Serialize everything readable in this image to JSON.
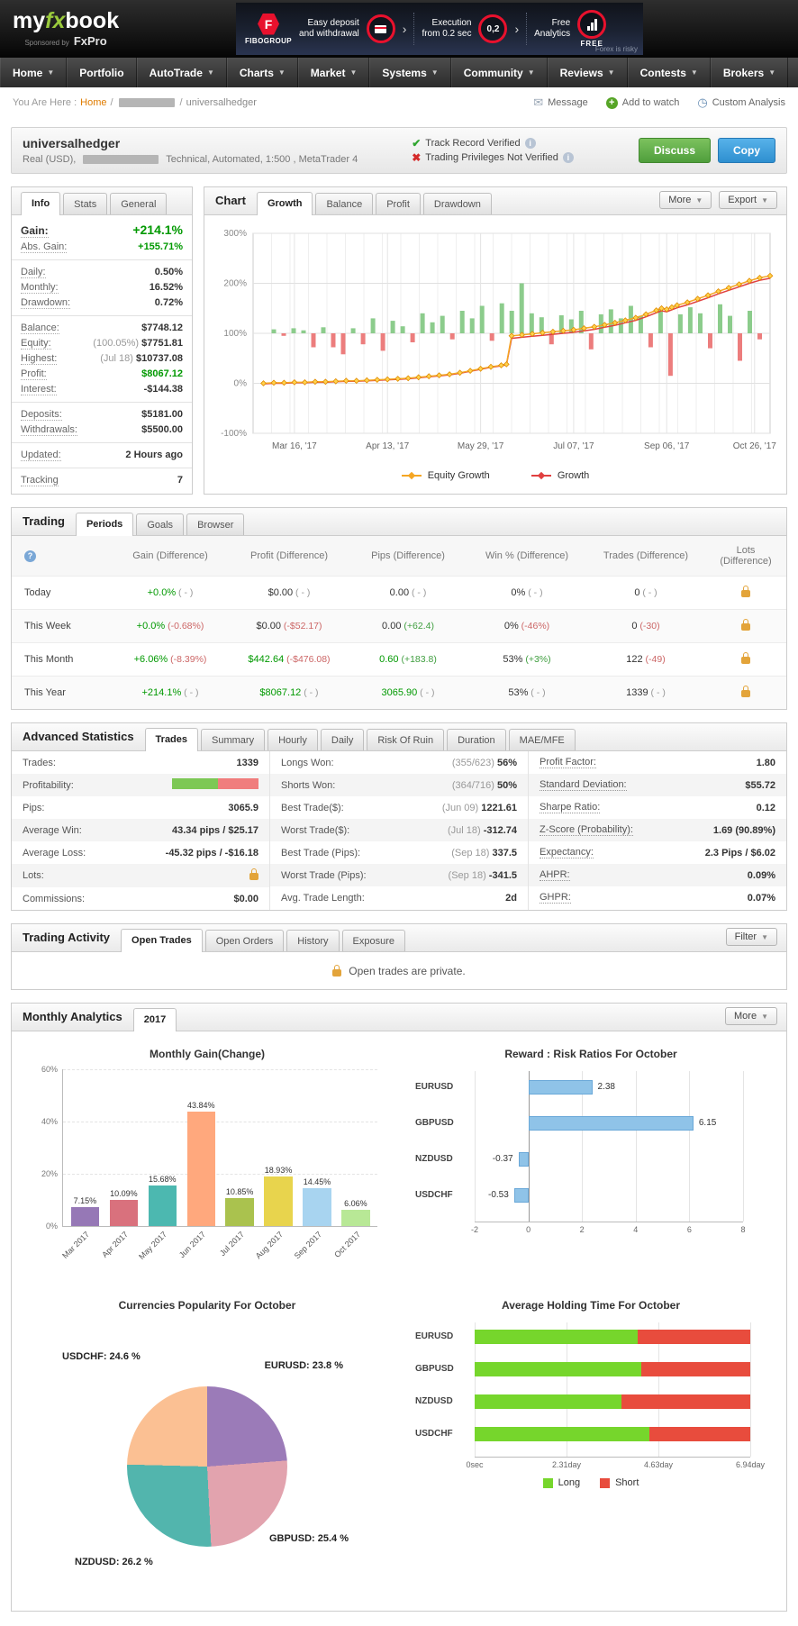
{
  "colors": {
    "accent_green": "#9aca3c",
    "positive": "#009900",
    "negative": "#cc2222",
    "link_orange": "#e07c00",
    "lock_gold": "#e3a43a"
  },
  "brand": {
    "logo_my": "my",
    "logo_fx": "fx",
    "logo_book": "book",
    "sponsored_by": "Sponsored by",
    "sponsor": "FxPro"
  },
  "ad": {
    "brand": "FIBOGROUP",
    "f1a": "Easy deposit",
    "f1b": "and withdrawal",
    "f2a": "Execution",
    "f2b": "from 0.2 sec",
    "f3a": "Free",
    "f3b": "Analytics",
    "badge": "0,2",
    "free": "FREE",
    "disclaimer": "Forex is risky"
  },
  "nav": [
    {
      "label": "Home",
      "arrow": true
    },
    {
      "label": "Portfolio",
      "arrow": false
    },
    {
      "label": "AutoTrade",
      "arrow": true
    },
    {
      "label": "Charts",
      "arrow": true
    },
    {
      "label": "Market",
      "arrow": true
    },
    {
      "label": "Systems",
      "arrow": true
    },
    {
      "label": "Community",
      "arrow": true
    },
    {
      "label": "Reviews",
      "arrow": true
    },
    {
      "label": "Contests",
      "arrow": true
    },
    {
      "label": "Brokers",
      "arrow": true
    }
  ],
  "breadcrumb": {
    "prefix": "You Are Here :",
    "home": "Home",
    "sep": "/",
    "current": "universalhedger",
    "actions": [
      {
        "label": "Message",
        "icon": "envelope-icon"
      },
      {
        "label": "Add to watch",
        "icon": "add-icon"
      },
      {
        "label": "Custom Analysis",
        "icon": "analysis-icon"
      }
    ]
  },
  "system": {
    "name": "universalhedger",
    "meta_prefix": "Real (USD),",
    "meta_suffix": "Technical, Automated, 1:500 , MetaTrader 4",
    "track_record": "Track Record Verified",
    "privileges": "Trading Privileges Not Verified",
    "discuss_label": "Discuss",
    "copy_label": "Copy"
  },
  "info_panel": {
    "tabs": [
      "Info",
      "Stats",
      "General"
    ],
    "active_tab": "Info",
    "groups": [
      [
        {
          "label": "Gain:",
          "value": "+214.1%",
          "color": "green",
          "big": true
        },
        {
          "label": "Abs. Gain:",
          "value": "+155.71%",
          "color": "green"
        }
      ],
      [
        {
          "label": "Daily:",
          "value": "0.50%"
        },
        {
          "label": "Monthly:",
          "value": "16.52%"
        },
        {
          "label": "Drawdown:",
          "value": "0.72%"
        }
      ],
      [
        {
          "label": "Balance:",
          "value": "$7748.12"
        },
        {
          "label": "Equity:",
          "prefix": "(100.05%)",
          "value": "$7751.81"
        },
        {
          "label": "Highest:",
          "prefix": "(Jul 18)",
          "value": "$10737.08"
        },
        {
          "label": "Profit:",
          "value": "$8067.12",
          "color": "green"
        },
        {
          "label": "Interest:",
          "value": "-$144.38"
        }
      ],
      [
        {
          "label": "Deposits:",
          "value": "$5181.00"
        },
        {
          "label": "Withdrawals:",
          "value": "$5500.00"
        }
      ],
      [
        {
          "label": "Updated:",
          "value": "2 Hours ago"
        }
      ],
      [
        {
          "label": "Tracking",
          "value": "7"
        }
      ]
    ]
  },
  "chart_panel": {
    "title": "Chart",
    "tabs": [
      "Growth",
      "Balance",
      "Profit",
      "Drawdown"
    ],
    "active_tab": "Growth",
    "more_label": "More",
    "export_label": "Export",
    "legend": [
      {
        "label": "Equity Growth",
        "color": "#f5a623"
      },
      {
        "label": "Growth",
        "color": "#e14040"
      }
    ]
  },
  "trading_panel": {
    "title": "Trading",
    "tabs": [
      "Periods",
      "Goals",
      "Browser"
    ],
    "active_tab": "Periods",
    "columns": [
      "Gain (Difference)",
      "Profit (Difference)",
      "Pips (Difference)",
      "Win % (Difference)",
      "Trades (Difference)",
      "Lots (Difference)"
    ],
    "rows": [
      {
        "period": "Today",
        "cells": [
          [
            "+0.0%",
            "pos",
            "( - )",
            "mut"
          ],
          [
            "$0.00",
            "",
            "( - )",
            "mut"
          ],
          [
            "0.00",
            "",
            "( - )",
            "mut"
          ],
          [
            "0%",
            "",
            "( - )",
            "mut"
          ],
          [
            "0",
            "",
            "( - )",
            "mut"
          ]
        ],
        "lots_lock": true
      },
      {
        "period": "This Week",
        "cells": [
          [
            "+0.0%",
            "pos",
            "(-0.68%)",
            "neg"
          ],
          [
            "$0.00",
            "",
            "(-$52.17)",
            "neg"
          ],
          [
            "0.00",
            "",
            "(+62.4)",
            "pos"
          ],
          [
            "0%",
            "",
            "(-46%)",
            "neg"
          ],
          [
            "0",
            "",
            "(-30)",
            "neg"
          ]
        ],
        "lots_lock": true
      },
      {
        "period": "This Month",
        "cells": [
          [
            "+6.06%",
            "pos",
            "(-8.39%)",
            "neg"
          ],
          [
            "$442.64",
            "pos",
            "(-$476.08)",
            "neg"
          ],
          [
            "0.60",
            "pos",
            "(+183.8)",
            "pos"
          ],
          [
            "53%",
            "",
            "(+3%)",
            "pos"
          ],
          [
            "122",
            "",
            "(-49)",
            "neg"
          ]
        ],
        "lots_lock": true
      },
      {
        "period": "This Year",
        "cells": [
          [
            "+214.1%",
            "pos",
            "( - )",
            "mut"
          ],
          [
            "$8067.12",
            "pos",
            "( - )",
            "mut"
          ],
          [
            "3065.90",
            "pos",
            "( - )",
            "mut"
          ],
          [
            "53%",
            "",
            "( - )",
            "mut"
          ],
          [
            "1339",
            "",
            "( - )",
            "mut"
          ]
        ],
        "lots_lock": true
      }
    ]
  },
  "advanced_panel": {
    "title": "Advanced Statistics",
    "tabs": [
      "Trades",
      "Summary",
      "Hourly",
      "Daily",
      "Risk Of Ruin",
      "Duration",
      "MAE/MFE"
    ],
    "active_tab": "Trades",
    "profitability_green_pct": 53,
    "columns": [
      [
        {
          "label": "Trades:",
          "value": "1339"
        },
        {
          "label": "Profitability:",
          "bar": true
        },
        {
          "label": "Pips:",
          "value": "3065.9"
        },
        {
          "label": "Average Win:",
          "value": "43.34 pips / $25.17"
        },
        {
          "label": "Average Loss:",
          "value": "-45.32 pips / -$16.18"
        },
        {
          "label": "Lots:",
          "lock": true
        },
        {
          "label": "Commissions:",
          "value": "$0.00"
        }
      ],
      [
        {
          "label": "Longs Won:",
          "prefix": "(355/623)",
          "value": "56%"
        },
        {
          "label": "Shorts Won:",
          "prefix": "(364/716)",
          "value": "50%"
        },
        {
          "label": "Best Trade($):",
          "prefix": "(Jun 09)",
          "value": "1221.61"
        },
        {
          "label": "Worst Trade($):",
          "prefix": "(Jul 18)",
          "value": "-312.74"
        },
        {
          "label": "Best Trade (Pips):",
          "prefix": "(Sep 18)",
          "value": "337.5"
        },
        {
          "label": "Worst Trade (Pips):",
          "prefix": "(Sep 18)",
          "value": "-341.5"
        },
        {
          "label": "Avg. Trade Length:",
          "value": "2d"
        }
      ],
      [
        {
          "label": "Profit Factor:",
          "value": "1.80",
          "dotted": true
        },
        {
          "label": "Standard Deviation:",
          "value": "$55.72",
          "dotted": true
        },
        {
          "label": "Sharpe Ratio:",
          "value": "0.12",
          "dotted": true
        },
        {
          "label": "Z-Score (Probability):",
          "value": "1.69 (90.89%)",
          "dotted": true
        },
        {
          "label": "Expectancy:",
          "value": "2.3 Pips / $6.02",
          "dotted": true
        },
        {
          "label": "AHPR:",
          "value": "0.09%",
          "dotted": true
        },
        {
          "label": "GHPR:",
          "value": "0.07%",
          "dotted": true
        }
      ]
    ]
  },
  "activity_panel": {
    "title": "Trading Activity",
    "tabs": [
      "Open Trades",
      "Open Orders",
      "History",
      "Exposure"
    ],
    "active_tab": "Open Trades",
    "filter_label": "Filter",
    "message": "Open trades are private."
  },
  "monthly_panel": {
    "title": "Monthly Analytics",
    "tab": "2017",
    "more_label": "More"
  },
  "chart_data": [
    {
      "type": "line+bar",
      "title": "Growth",
      "ylim": [
        -100,
        300
      ],
      "ytick_values": [
        300,
        200,
        100,
        0,
        -100
      ],
      "yticks": [
        "300%",
        "200%",
        "100%",
        "0%",
        "-100%"
      ],
      "xticks": [
        "Mar 16, '17",
        "Apr 13, '17",
        "May 29, '17",
        "Jul 07, '17",
        "Sep 06, '17",
        "Oct 26, '17"
      ],
      "xtick_pos": [
        0.08,
        0.26,
        0.44,
        0.62,
        0.8,
        0.97
      ],
      "series": [
        {
          "name": "Equity Growth",
          "color": "#f5a623",
          "points": [
            [
              2,
              0
            ],
            [
              4,
              1
            ],
            [
              6,
              1
            ],
            [
              8,
              2
            ],
            [
              10,
              2
            ],
            [
              12,
              3
            ],
            [
              14,
              3
            ],
            [
              16,
              4
            ],
            [
              18,
              5
            ],
            [
              20,
              5
            ],
            [
              22,
              6
            ],
            [
              24,
              7
            ],
            [
              26,
              8
            ],
            [
              28,
              9
            ],
            [
              30,
              10
            ],
            [
              32,
              12
            ],
            [
              34,
              14
            ],
            [
              36,
              16
            ],
            [
              38,
              18
            ],
            [
              40,
              21
            ],
            [
              42,
              25
            ],
            [
              44,
              29
            ],
            [
              46,
              33
            ],
            [
              48,
              36
            ],
            [
              49,
              38
            ],
            [
              50,
              95
            ],
            [
              52,
              97
            ],
            [
              54,
              99
            ],
            [
              56,
              101
            ],
            [
              58,
              103
            ],
            [
              60,
              105
            ],
            [
              62,
              107
            ],
            [
              64,
              110
            ],
            [
              66,
              113
            ],
            [
              68,
              117
            ],
            [
              70,
              121
            ],
            [
              72,
              126
            ],
            [
              74,
              131
            ],
            [
              76,
              138
            ],
            [
              78,
              146
            ],
            [
              79,
              150
            ],
            [
              80,
              148
            ],
            [
              81,
              152
            ],
            [
              82,
              156
            ],
            [
              84,
              162
            ],
            [
              86,
              169
            ],
            [
              88,
              176
            ],
            [
              90,
              184
            ],
            [
              92,
              191
            ],
            [
              94,
              198
            ],
            [
              96,
              205
            ],
            [
              98,
              211
            ],
            [
              100,
              215
            ]
          ]
        },
        {
          "name": "Growth",
          "color": "#e14040"
        }
      ],
      "bars": {
        "baseline": 100,
        "positive_color": "#8ccc8c",
        "negative_color": "#ec7d7d",
        "values": [
          8,
          -5,
          10,
          6,
          -28,
          12,
          -28,
          -42,
          10,
          -22,
          30,
          -35,
          25,
          14,
          -18,
          40,
          22,
          35,
          -12,
          45,
          30,
          55,
          -15,
          60,
          45,
          100,
          40,
          32,
          -22,
          36,
          28,
          45,
          -32,
          38,
          48,
          30,
          55,
          35,
          -28,
          48,
          -85,
          38,
          52,
          40,
          -30,
          58,
          35,
          -55,
          45,
          -12
        ]
      }
    },
    {
      "type": "bar",
      "title": "Monthly Gain(Change)",
      "categories": [
        "Mar 2017",
        "Apr 2017",
        "May 2017",
        "Jun 2017",
        "Jul 2017",
        "Aug 2017",
        "Sep 2017",
        "Oct 2017"
      ],
      "values": [
        7.15,
        10.09,
        15.68,
        43.84,
        10.85,
        18.93,
        14.45,
        6.06
      ],
      "labels": [
        "7.15%",
        "10.09%",
        "15.68%",
        "43.84%",
        "10.85%",
        "18.93%",
        "14.45%",
        "6.06%"
      ],
      "colors": [
        "#9678b6",
        "#d9717d",
        "#4cb8b0",
        "#ffa87d",
        "#aac24e",
        "#e8d44d",
        "#a8d4f0",
        "#b8e896"
      ],
      "yticks": [
        "0%",
        "20%",
        "40%",
        "60%"
      ],
      "ylim": [
        0,
        60
      ]
    },
    {
      "type": "hbar",
      "title": "Reward : Risk Ratios For October",
      "categories": [
        "EURUSD",
        "GBPUSD",
        "NZDUSD",
        "USDCHF"
      ],
      "values": [
        2.38,
        6.15,
        -0.37,
        -0.53
      ],
      "labels": [
        "2.38",
        "6.15",
        "-0.37",
        "-0.53"
      ],
      "xlim": [
        -2,
        8
      ],
      "xticks": [
        "-2",
        "0",
        "2",
        "4",
        "6",
        "8"
      ],
      "bar_color": "#8fc3e8"
    },
    {
      "type": "pie",
      "title": "Currencies Popularity For October",
      "slices": [
        {
          "label": "EURUSD",
          "pct": 23.8,
          "color": "#9b7bb8",
          "text": "EURUSD: 23.8 %"
        },
        {
          "label": "GBPUSD",
          "pct": 25.4,
          "color": "#e2a3ae",
          "text": "GBPUSD: 25.4 %"
        },
        {
          "label": "NZDUSD",
          "pct": 26.2,
          "color": "#52b5ad",
          "text": "NZDUSD: 26.2 %"
        },
        {
          "label": "USDCHF",
          "pct": 24.6,
          "color": "#fbc093",
          "text": "USDCHF: 24.6 %"
        }
      ]
    },
    {
      "type": "stacked-hbar",
      "title": "Average Holding Time For October",
      "categories": [
        "EURUSD",
        "GBPUSD",
        "NZDUSD",
        "USDCHF"
      ],
      "series": [
        {
          "name": "Long",
          "color": "#76d62c",
          "values": [
            4.1,
            4.2,
            3.7,
            4.4
          ]
        },
        {
          "name": "Short",
          "color": "#e84c3d",
          "values": [
            2.84,
            2.74,
            3.24,
            2.54
          ]
        }
      ],
      "xticks": [
        "0sec",
        "2.31day",
        "4.63day",
        "6.94day"
      ],
      "xlim": [
        0,
        6.94
      ]
    }
  ]
}
